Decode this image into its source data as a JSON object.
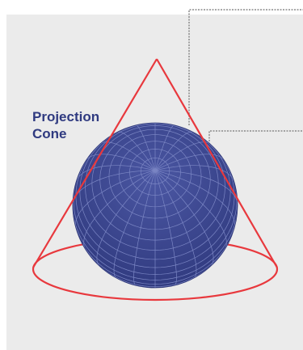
{
  "diagram": {
    "label_line1": "Projection",
    "label_line2": "Cone",
    "colors": {
      "panel": "#ebebeb",
      "cone": "#e8383d",
      "globe": "#3a4590",
      "grid": "#7b86c4",
      "label": "#2f3a80",
      "dashed": "#8a8a8a"
    }
  }
}
